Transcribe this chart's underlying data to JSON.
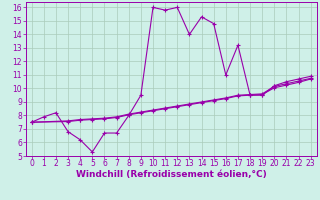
{
  "background_color": "#cff0e8",
  "line_color": "#9900aa",
  "xlabel": "Windchill (Refroidissement éolien,°C)",
  "xlabel_fontsize": 6.5,
  "tick_fontsize": 5.5,
  "xlim": [
    -0.5,
    23.5
  ],
  "ylim": [
    5,
    16.4
  ],
  "xticks": [
    0,
    1,
    2,
    3,
    4,
    5,
    6,
    7,
    8,
    9,
    10,
    11,
    12,
    13,
    14,
    15,
    16,
    17,
    18,
    19,
    20,
    21,
    22,
    23
  ],
  "yticks": [
    5,
    6,
    7,
    8,
    9,
    10,
    11,
    12,
    13,
    14,
    15,
    16
  ],
  "series1_x": [
    0,
    1,
    2,
    3,
    4,
    5,
    6,
    7,
    8,
    9,
    10,
    11,
    12,
    13,
    14,
    15,
    16,
    17,
    18,
    19,
    20,
    21,
    22,
    23
  ],
  "series1_y": [
    7.5,
    7.9,
    8.2,
    6.8,
    6.2,
    5.3,
    6.7,
    6.7,
    8.0,
    9.5,
    16.0,
    15.8,
    16.0,
    14.0,
    15.3,
    14.8,
    11.0,
    13.2,
    9.5,
    9.5,
    10.2,
    10.5,
    10.7,
    10.9
  ],
  "series2_x": [
    0,
    3,
    4,
    5,
    6,
    7,
    8,
    9,
    10,
    11,
    12,
    13,
    14,
    15,
    16,
    17,
    18,
    19,
    20,
    21,
    22,
    23
  ],
  "series2_y": [
    7.5,
    7.6,
    7.7,
    7.75,
    7.8,
    7.9,
    8.1,
    8.25,
    8.4,
    8.55,
    8.7,
    8.85,
    9.0,
    9.15,
    9.3,
    9.5,
    9.55,
    9.6,
    10.15,
    10.35,
    10.55,
    10.75
  ],
  "series3_x": [
    0,
    3,
    4,
    5,
    6,
    7,
    8,
    9,
    10,
    11,
    12,
    13,
    14,
    15,
    16,
    17,
    18,
    19,
    20,
    21,
    22,
    23
  ],
  "series3_y": [
    7.5,
    7.55,
    7.65,
    7.7,
    7.75,
    7.85,
    8.05,
    8.2,
    8.35,
    8.5,
    8.65,
    8.8,
    8.95,
    9.1,
    9.25,
    9.45,
    9.5,
    9.55,
    10.05,
    10.25,
    10.45,
    10.7
  ],
  "grid_color": "#aaccbb",
  "spine_color": "#9900aa"
}
